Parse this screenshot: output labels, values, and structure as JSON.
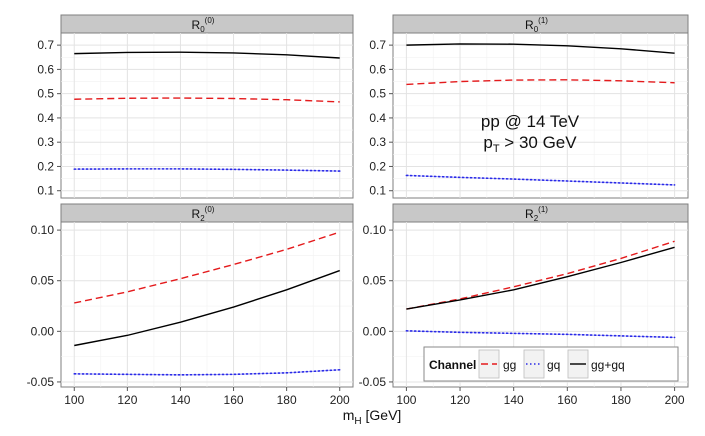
{
  "chart_data": {
    "type": "line",
    "x_label": {
      "main": "m",
      "sub": "H",
      "unit": " [GeV]"
    },
    "x_ticks": [
      100,
      120,
      140,
      160,
      180,
      200
    ],
    "xlim": [
      95,
      205
    ],
    "annotation": {
      "line1": "pp @ 14 TeV",
      "line2_main": "p",
      "line2_sub": "T",
      "line2_rest": " > 30 GeV"
    },
    "legend": {
      "title": "Channel",
      "placement": "bottom-right panel, bottom",
      "items": [
        {
          "name": "gg",
          "color": "#e41a1c",
          "dash": "dashed"
        },
        {
          "name": "gq",
          "color": "#2a2ae8",
          "dash": "dotted"
        },
        {
          "name": "gg+gq",
          "color": "#000000",
          "dash": "solid"
        }
      ]
    },
    "series_styles": {
      "gg": {
        "color": "#e41a1c",
        "dash": "dashed"
      },
      "gq": {
        "color": "#2a2ae8",
        "dash": "dotted"
      },
      "gg+gq": {
        "color": "#000000",
        "dash": "solid"
      }
    },
    "panels": [
      {
        "title": {
          "base": "R",
          "sub": "0",
          "sup": "(0)"
        },
        "ylim": [
          0.07,
          0.75
        ],
        "y_ticks": [
          0.1,
          0.2,
          0.3,
          0.4,
          0.5,
          0.6,
          0.7
        ],
        "y_tick_labels": [
          "0.1",
          "0.2",
          "0.3",
          "0.4",
          "0.5",
          "0.6",
          "0.7"
        ],
        "series": [
          {
            "name": "gg",
            "x": [
              100,
              120,
              140,
              160,
              180,
              200
            ],
            "y": [
              0.477,
              0.481,
              0.482,
              0.48,
              0.475,
              0.466
            ]
          },
          {
            "name": "gq",
            "x": [
              100,
              120,
              140,
              160,
              180,
              200
            ],
            "y": [
              0.189,
              0.19,
              0.19,
              0.188,
              0.185,
              0.181
            ]
          },
          {
            "name": "gg+gq",
            "x": [
              100,
              120,
              140,
              160,
              180,
              200
            ],
            "y": [
              0.665,
              0.67,
              0.671,
              0.668,
              0.66,
              0.647
            ]
          }
        ]
      },
      {
        "title": {
          "base": "R",
          "sub": "0",
          "sup": "(1)"
        },
        "ylim": [
          0.07,
          0.75
        ],
        "y_ticks": [
          0.1,
          0.2,
          0.3,
          0.4,
          0.5,
          0.6,
          0.7
        ],
        "y_tick_labels": [
          "0.1",
          "0.2",
          "0.3",
          "0.4",
          "0.5",
          "0.6",
          "0.7"
        ],
        "series": [
          {
            "name": "gg",
            "x": [
              100,
              120,
              140,
              160,
              180,
              200
            ],
            "y": [
              0.538,
              0.55,
              0.556,
              0.557,
              0.553,
              0.545
            ]
          },
          {
            "name": "gq",
            "x": [
              100,
              120,
              140,
              160,
              180,
              200
            ],
            "y": [
              0.163,
              0.155,
              0.148,
              0.14,
              0.132,
              0.124
            ]
          },
          {
            "name": "gg+gq",
            "x": [
              100,
              120,
              140,
              160,
              180,
              200
            ],
            "y": [
              0.7,
              0.705,
              0.704,
              0.697,
              0.685,
              0.667
            ]
          }
        ]
      },
      {
        "title": {
          "base": "R",
          "sub": "2",
          "sup": "(0)"
        },
        "ylim": [
          -0.055,
          0.108
        ],
        "y_ticks": [
          -0.05,
          0.0,
          0.05,
          0.1
        ],
        "y_tick_labels": [
          "-0.05",
          "0.00",
          "0.05",
          "0.10"
        ],
        "series": [
          {
            "name": "gg",
            "x": [
              100,
              120,
              140,
              160,
              180,
              200
            ],
            "y": [
              0.028,
              0.039,
              0.052,
              0.066,
              0.081,
              0.098
            ]
          },
          {
            "name": "gq",
            "x": [
              100,
              120,
              140,
              160,
              180,
              200
            ],
            "y": [
              -0.042,
              -0.0425,
              -0.043,
              -0.0425,
              -0.041,
              -0.038
            ]
          },
          {
            "name": "gg+gq",
            "x": [
              100,
              120,
              140,
              160,
              180,
              200
            ],
            "y": [
              -0.014,
              -0.004,
              0.009,
              0.024,
              0.041,
              0.06
            ]
          }
        ]
      },
      {
        "title": {
          "base": "R",
          "sub": "2",
          "sup": "(1)"
        },
        "ylim": [
          -0.055,
          0.108
        ],
        "y_ticks": [
          -0.05,
          0.0,
          0.05,
          0.1
        ],
        "y_tick_labels": [
          "-0.05",
          "0.00",
          "0.05",
          "0.10"
        ],
        "series": [
          {
            "name": "gg",
            "x": [
              100,
              120,
              140,
              160,
              180,
              200
            ],
            "y": [
              0.022,
              0.032,
              0.044,
              0.057,
              0.072,
              0.089
            ]
          },
          {
            "name": "gq",
            "x": [
              100,
              120,
              140,
              160,
              180,
              200
            ],
            "y": [
              0.0005,
              -0.001,
              -0.002,
              -0.003,
              -0.0045,
              -0.006
            ]
          },
          {
            "name": "gg+gq",
            "x": [
              100,
              120,
              140,
              160,
              180,
              200
            ],
            "y": [
              0.022,
              0.031,
              0.041,
              0.054,
              0.068,
              0.083
            ]
          }
        ]
      }
    ]
  }
}
